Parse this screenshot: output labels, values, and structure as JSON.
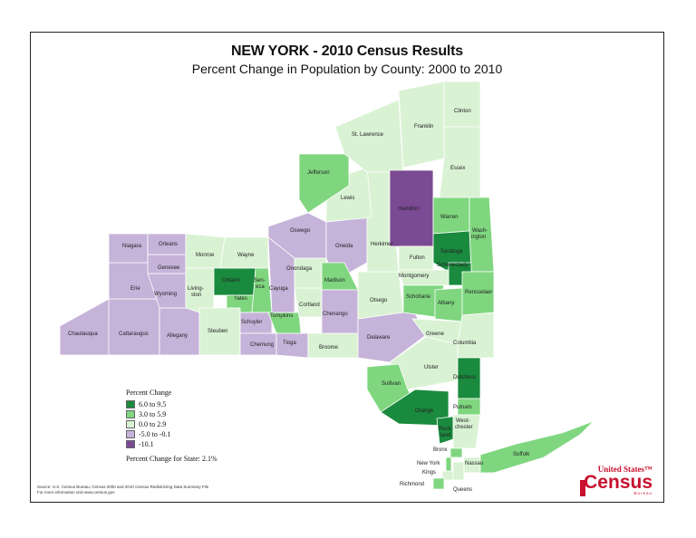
{
  "title": "NEW YORK - 2010 Census Results",
  "subtitle": "Percent Change in Population by County:  2000 to 2010",
  "legend": {
    "title": "Percent Change",
    "classes": [
      {
        "label": "6.0 to 9.5",
        "color": "#1a8a3e"
      },
      {
        "label": "3.0 to 5.9",
        "color": "#7fd67f"
      },
      {
        "label": "0.0 to 2.9",
        "color": "#d9f2d3"
      },
      {
        "label": "-5.0 to -0.1",
        "color": "#c6b3d9"
      },
      {
        "label": "-10.1",
        "color": "#7a4a93"
      }
    ],
    "state_change": "Percent Change for State:  2.1%"
  },
  "source": {
    "line1": "Source:  U.S. Census Bureau, Census 2000 and 2010 Census Redistricting Data Summary File",
    "line2": "For more information visit www.census.gov"
  },
  "logo": {
    "line1": "United States™",
    "line2": "Census",
    "line3": "Bureau"
  },
  "counties": {
    "chautauqua": "Chautauqua",
    "cattaraugus": "Cattaraugus",
    "allegany": "Allegany",
    "erie": "Erie",
    "wyoming": "Wyoming",
    "genesee": "Genesee",
    "niagara": "Niagara",
    "orleans": "Orleans",
    "monroe": "Monroe",
    "livingston": "Living-\nston",
    "ontario": "Ontario",
    "wayne": "Wayne",
    "yates": "Yates",
    "seneca": "Sen-\neca",
    "steuben": "Steuben",
    "schuyler": "Schuyler",
    "chemung": "Chemung",
    "tioga": "Tioga",
    "tompkins": "Tompkins",
    "cayuga": "Cayuga",
    "cortland": "Cortland",
    "onondaga": "Onondaga",
    "oswego": "Oswego",
    "oneida": "Oneida",
    "madison": "Madison",
    "chenango": "Chenango",
    "broome": "Broome",
    "delaware": "Delaware",
    "otsego": "Otsego",
    "herkimer": "Herkimer",
    "lewis": "Lewis",
    "jefferson": "Jefferson",
    "st_lawrence": "St. Lawrence",
    "franklin": "Franklin",
    "clinton": "Clinton",
    "essex": "Essex",
    "hamilton": "Hamilton",
    "warren": "Warren",
    "washington": "Wash-\nington",
    "saratoga": "Saratoga",
    "schenectady": "Schenectady",
    "fulton": "Fulton",
    "montgomery": "Montgomery",
    "schoharie": "Schoharie",
    "albany": "Albany",
    "rensselaer": "Rensselaer",
    "greene": "Greene",
    "columbia": "Columbia",
    "ulster": "Ulster",
    "sullivan": "Sullivan",
    "dutchess": "Dutchess",
    "orange": "Orange",
    "putnam": "Putnam",
    "westchester": "West-\nchester",
    "rockland": "Rock-\nland",
    "bronx": "Bronx",
    "new_york": "New York",
    "kings": "Kings",
    "richmond": "Richmond",
    "queens": "Queens",
    "nassau": "Nassau",
    "suffolk": "Suffolk"
  },
  "county_class": {
    "chautauqua": 3,
    "cattaraugus": 3,
    "allegany": 3,
    "erie": 3,
    "wyoming": 3,
    "genesee": 3,
    "niagara": 3,
    "orleans": 3,
    "monroe": 2,
    "livingston": 2,
    "ontario": 0,
    "wayne": 2,
    "yates": 1,
    "seneca": 1,
    "steuben": 2,
    "schuyler": 3,
    "chemung": 3,
    "tioga": 3,
    "tompkins": 1,
    "cayuga": 3,
    "cortland": 2,
    "onondaga": 2,
    "oswego": 3,
    "oneida": 3,
    "madison": 1,
    "chenango": 3,
    "broome": 2,
    "delaware": 3,
    "otsego": 2,
    "herkimer": 2,
    "lewis": 2,
    "jefferson": 1,
    "st_lawrence": 2,
    "franklin": 2,
    "clinton": 2,
    "essex": 2,
    "hamilton": 4,
    "warren": 1,
    "washington": 1,
    "saratoga": 0,
    "schenectady": 0,
    "fulton": 2,
    "montgomery": 2,
    "schoharie": 1,
    "albany": 1,
    "rensselaer": 1,
    "greene": 2,
    "columbia": 2,
    "ulster": 2,
    "sullivan": 1,
    "dutchess": 0,
    "orange": 0,
    "putnam": 1,
    "westchester": 2,
    "rockland": 0,
    "bronx": 1,
    "new_york": 1,
    "kings": 2,
    "richmond": 1,
    "queens": 2,
    "nassau": 2,
    "suffolk": 1
  }
}
